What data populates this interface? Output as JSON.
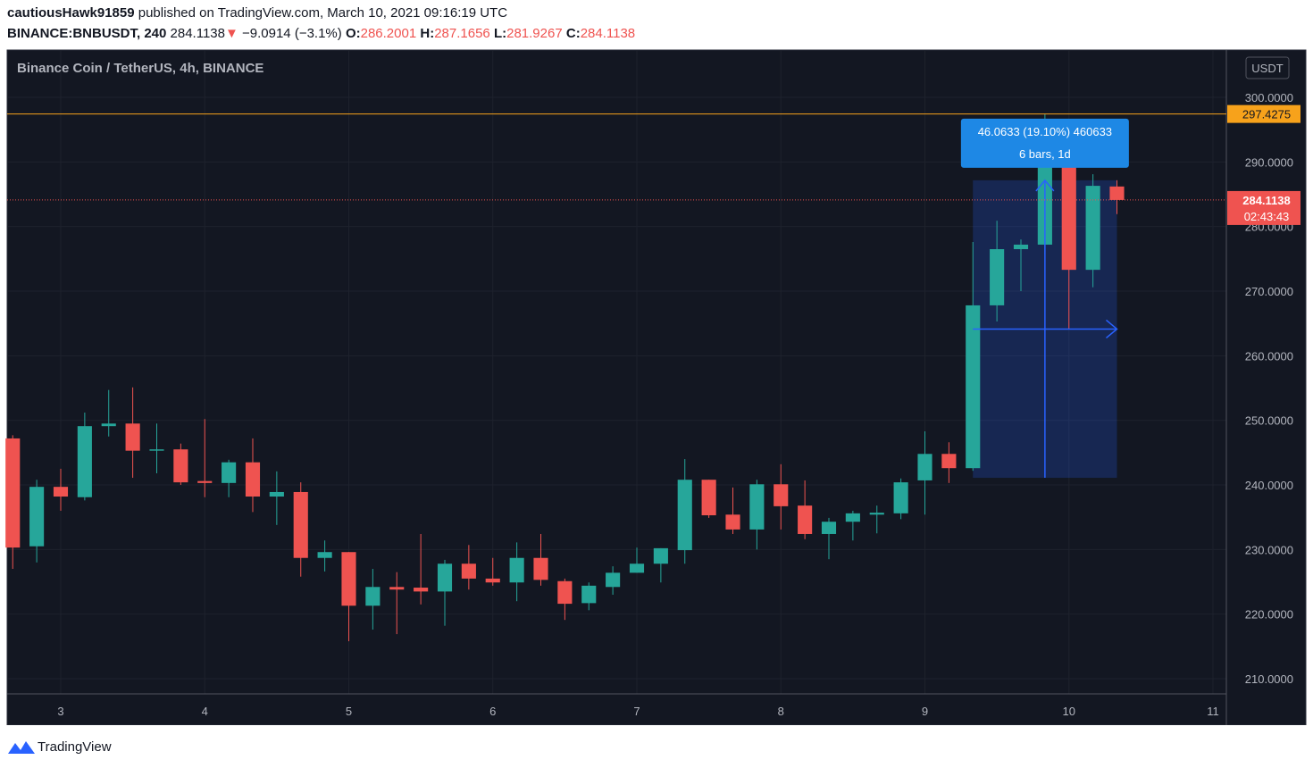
{
  "header": {
    "author": "cautiousHawk91859",
    "published": "published on TradingView.com, March 10, 2021 09:16:19 UTC",
    "symbol": "BINANCE:BNBUSDT, 240",
    "last": "284.1138",
    "arrow": "▼",
    "change": "−9.0914 (−3.1%)",
    "o_label": "O:",
    "o": "286.2001",
    "h_label": "H:",
    "h": "287.1656",
    "l_label": "L:",
    "l": "281.9267",
    "c_label": "C:",
    "c": "284.1138"
  },
  "chart_data": {
    "type": "candlestick",
    "title": "Binance Coin / TetherUS, 4h, BINANCE",
    "currency": "USDT",
    "up_color": "#26a69a",
    "down_color": "#ef5350",
    "grid": true,
    "xlim": [
      2.628,
      11.093
    ],
    "xticks": [
      3,
      4,
      5,
      6,
      7,
      8,
      9,
      10,
      11
    ],
    "ylim": [
      207.65,
      307.33
    ],
    "yticks": [
      {
        "value": 210,
        "label": "210.0000"
      },
      {
        "value": 220,
        "label": "220.0000"
      },
      {
        "value": 230,
        "label": "230.0000"
      },
      {
        "value": 240,
        "label": "240.0000"
      },
      {
        "value": 250,
        "label": "250.0000"
      },
      {
        "value": 260,
        "label": "260.0000"
      },
      {
        "value": 270,
        "label": "270.0000"
      },
      {
        "value": 280,
        "label": "280.0000"
      },
      {
        "value": 290,
        "label": "290.0000"
      },
      {
        "value": 300,
        "label": "300.0000"
      }
    ],
    "x": [
      2.6667,
      2.8333,
      3,
      3.1667,
      3.3333,
      3.5,
      3.6667,
      3.8333,
      4,
      4.1667,
      4.3333,
      4.5,
      4.6667,
      4.8333,
      5,
      5.1667,
      5.3333,
      5.5,
      5.6667,
      5.8333,
      6,
      6.1667,
      6.3333,
      6.5,
      6.6667,
      6.8333,
      7,
      7.1667,
      7.3333,
      7.5,
      7.6667,
      7.8333,
      8,
      8.1667,
      8.3333,
      8.5,
      8.6667,
      8.8333,
      9,
      9.1667,
      9.3333,
      9.5,
      9.6667,
      9.8333,
      10,
      10.1667,
      10.3333
    ],
    "open": [
      247.2,
      230.5,
      239.7,
      238.1,
      249.1,
      249.5,
      245.3,
      245.5,
      240.6,
      240.3,
      243.5,
      238.2,
      238.9,
      228.7,
      229.6,
      221.3,
      224.2,
      224.1,
      223.5,
      227.8,
      225.5,
      224.9,
      228.7,
      225.1,
      221.7,
      224.2,
      226.4,
      227.8,
      229.9,
      240.8,
      235.4,
      233.1,
      240.1,
      236.8,
      232.4,
      234.3,
      235.4,
      235.6,
      240.7,
      244.8,
      242.6,
      267.8,
      276.5,
      277.2,
      289.5,
      273.3,
      286.2001
    ],
    "high": [
      247.7,
      240.8,
      242.5,
      251.2,
      254.7,
      255.1,
      249.5,
      246.4,
      250.2,
      243.9,
      247.2,
      242.1,
      240.4,
      231.4,
      229.6,
      227.0,
      226.5,
      232.4,
      228.4,
      230.7,
      228.7,
      231.1,
      232.4,
      225.5,
      224.9,
      227.4,
      230.3,
      230.2,
      244.0,
      240.8,
      239.6,
      240.8,
      243.2,
      240.7,
      234.9,
      236.0,
      236.8,
      241.0,
      248.3,
      246.6,
      277.6,
      280.9,
      278.0,
      297.4275,
      291.0,
      288.1,
      287.1656
    ],
    "low": [
      227.0,
      228.0,
      236.0,
      237.6,
      247.5,
      241.1,
      241.8,
      240.0,
      238.1,
      238.1,
      235.8,
      233.8,
      225.8,
      226.6,
      215.8,
      217.6,
      216.9,
      221.5,
      218.2,
      223.8,
      224.4,
      222.0,
      224.4,
      219.1,
      220.6,
      223.0,
      226.4,
      224.9,
      227.8,
      234.9,
      232.4,
      230.0,
      233.1,
      231.6,
      228.5,
      231.4,
      232.5,
      234.7,
      235.4,
      240.3,
      242.2,
      265.3,
      270.0,
      275.7,
      264.2,
      270.6,
      281.9267
    ],
    "close": [
      230.3,
      239.7,
      238.2,
      249.1,
      249.5,
      245.3,
      245.5,
      240.4,
      240.3,
      243.5,
      238.2,
      238.9,
      228.7,
      229.6,
      221.3,
      224.2,
      223.8,
      223.5,
      227.8,
      225.5,
      224.9,
      228.7,
      225.3,
      221.6,
      224.4,
      226.4,
      227.8,
      230.2,
      240.8,
      235.3,
      233.1,
      240.1,
      236.7,
      232.4,
      234.3,
      235.6,
      235.7,
      240.4,
      244.8,
      242.6,
      267.8,
      276.5,
      277.2,
      289.2,
      273.3,
      286.3,
      284.1138
    ],
    "hline": 297.4275,
    "hline_color": "#f7a21b",
    "last_price": 284.1138,
    "countdown": "02:43:43",
    "measure": {
      "from_x": 9.3333,
      "to_x": 10.3333,
      "from": 241.1,
      "to": 287.16,
      "label": "46.0633 (19.10%) 460633",
      "detail": "6 bars, 1d"
    }
  },
  "footer": {
    "brand": "TradingView"
  }
}
